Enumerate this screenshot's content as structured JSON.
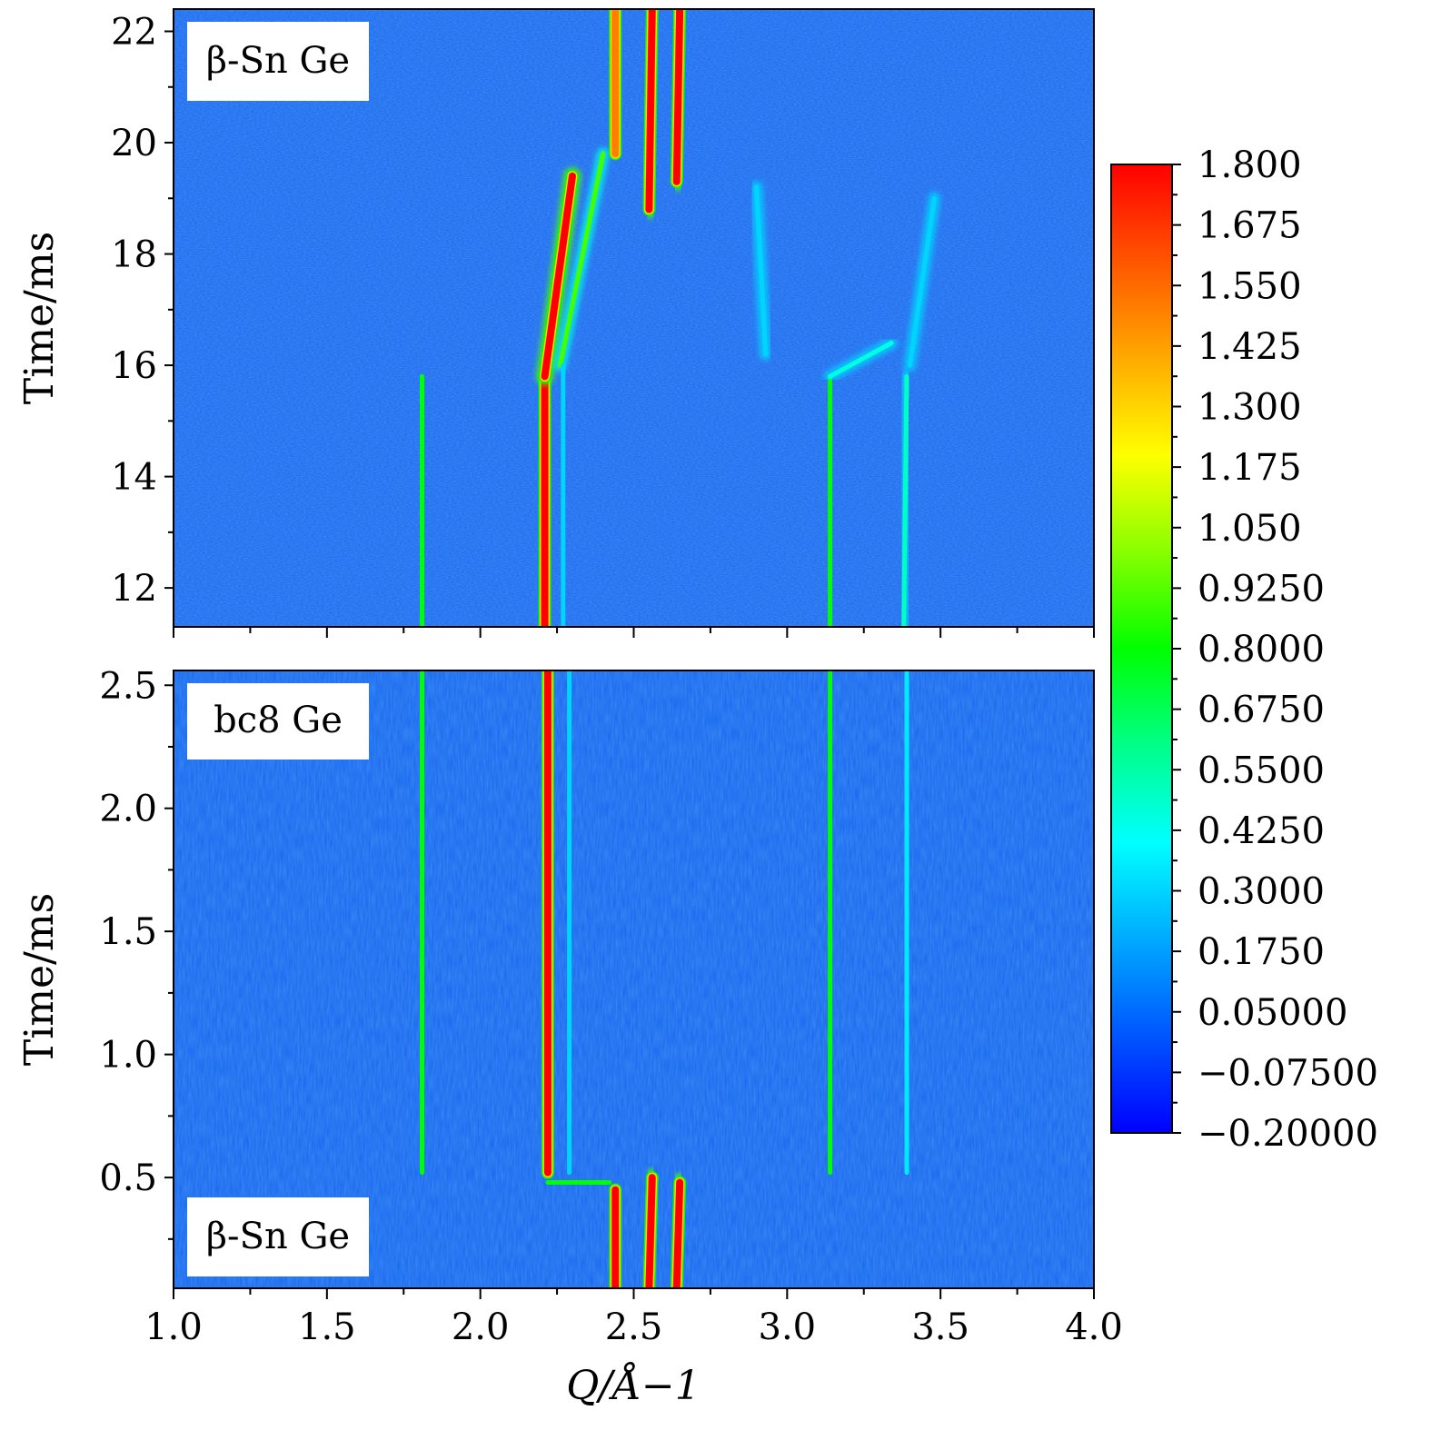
{
  "chart_data": [
    {
      "type": "heatmap",
      "panel": "top",
      "ylabel": "Time/ms",
      "xlabel": "",
      "xlim": [
        1.0,
        4.0
      ],
      "ylim": [
        11.3,
        22.4
      ],
      "y_ticks": [
        "12",
        "14",
        "16",
        "18",
        "20",
        "22"
      ],
      "annotations": [
        "β-Sn Ge"
      ],
      "features": [
        {
          "q_start": 1.81,
          "q_end": 1.81,
          "t_from": 11.3,
          "t_to": 15.8,
          "intensity": 0.8
        },
        {
          "q_start": 2.21,
          "q_end": 2.21,
          "t_from": 11.3,
          "t_to": 15.8,
          "intensity": 1.8
        },
        {
          "q_start": 2.21,
          "q_end": 2.3,
          "t_from": 15.8,
          "t_to": 19.4,
          "intensity": 1.8
        },
        {
          "q_start": 2.26,
          "q_end": 2.4,
          "t_from": 16.0,
          "t_to": 19.8,
          "intensity": 0.9
        },
        {
          "q_start": 2.44,
          "q_end": 2.44,
          "t_from": 19.8,
          "t_to": 22.4,
          "intensity": 1.5
        },
        {
          "q_start": 2.55,
          "q_end": 2.56,
          "t_from": 18.8,
          "t_to": 22.4,
          "intensity": 1.8
        },
        {
          "q_start": 2.64,
          "q_end": 2.65,
          "t_from": 19.3,
          "t_to": 22.4,
          "intensity": 1.8
        },
        {
          "q_start": 3.14,
          "q_end": 3.14,
          "t_from": 11.3,
          "t_to": 15.8,
          "intensity": 0.8
        },
        {
          "q_start": 3.14,
          "q_end": 3.34,
          "t_from": 15.8,
          "t_to": 16.4,
          "intensity": 0.45
        },
        {
          "q_start": 3.38,
          "q_end": 3.39,
          "t_from": 11.3,
          "t_to": 15.8,
          "intensity": 0.5
        },
        {
          "q_start": 2.27,
          "q_end": 2.27,
          "t_from": 11.3,
          "t_to": 16.0,
          "intensity": 0.3
        },
        {
          "q_start": 2.93,
          "q_end": 2.9,
          "t_from": 16.2,
          "t_to": 19.2,
          "intensity": 0.3
        },
        {
          "q_start": 3.4,
          "q_end": 3.48,
          "t_from": 16.0,
          "t_to": 19.0,
          "intensity": 0.3
        }
      ]
    },
    {
      "type": "heatmap",
      "panel": "bottom",
      "ylabel": "Time/ms",
      "xlabel": "Q/Å−1",
      "xlim": [
        1.0,
        4.0
      ],
      "ylim": [
        0.05,
        2.56
      ],
      "y_ticks": [
        "0.5",
        "1.0",
        "1.5",
        "2.0",
        "2.5"
      ],
      "x_ticks": [
        "1.0",
        "1.5",
        "2.0",
        "2.5",
        "3.0",
        "3.5",
        "4.0"
      ],
      "annotations": [
        "bc8 Ge",
        "β-Sn Ge"
      ],
      "features": [
        {
          "q_start": 1.81,
          "q_end": 1.81,
          "t_from": 0.52,
          "t_to": 2.56,
          "intensity": 0.8
        },
        {
          "q_start": 2.22,
          "q_end": 2.22,
          "t_from": 0.52,
          "t_to": 2.56,
          "intensity": 1.8
        },
        {
          "q_start": 2.29,
          "q_end": 2.29,
          "t_from": 0.52,
          "t_to": 2.56,
          "intensity": 0.3
        },
        {
          "q_start": 3.14,
          "q_end": 3.14,
          "t_from": 0.52,
          "t_to": 2.56,
          "intensity": 0.8
        },
        {
          "q_start": 3.39,
          "q_end": 3.39,
          "t_from": 0.52,
          "t_to": 2.56,
          "intensity": 0.35
        },
        {
          "q_start": 2.22,
          "q_end": 2.42,
          "t_from": 0.48,
          "t_to": 0.48,
          "intensity": 0.8
        },
        {
          "q_start": 2.44,
          "q_end": 2.44,
          "t_from": 0.05,
          "t_to": 0.45,
          "intensity": 1.8
        },
        {
          "q_start": 2.55,
          "q_end": 2.56,
          "t_from": 0.05,
          "t_to": 0.5,
          "intensity": 1.8
        },
        {
          "q_start": 2.64,
          "q_end": 2.65,
          "t_from": 0.05,
          "t_to": 0.48,
          "intensity": 1.8
        }
      ]
    }
  ],
  "colorbar": {
    "ticks": [
      "1.800",
      "1.675",
      "1.550",
      "1.425",
      "1.300",
      "1.175",
      "1.050",
      "0.9250",
      "0.8000",
      "0.6750",
      "0.5500",
      "0.4250",
      "0.3000",
      "0.1750",
      "0.05000",
      "−0.07500",
      "−0.20000"
    ],
    "range": [
      -0.2,
      1.8
    ],
    "stops": [
      "#0000ff",
      "#0055ff",
      "#00aaff",
      "#00ffff",
      "#00ff88",
      "#00ff00",
      "#88ff00",
      "#ffff00",
      "#ffaa00",
      "#ff5500",
      "#ff0000"
    ]
  },
  "colors": {
    "background": "#1c6cf0",
    "panel_border": "#000000"
  }
}
